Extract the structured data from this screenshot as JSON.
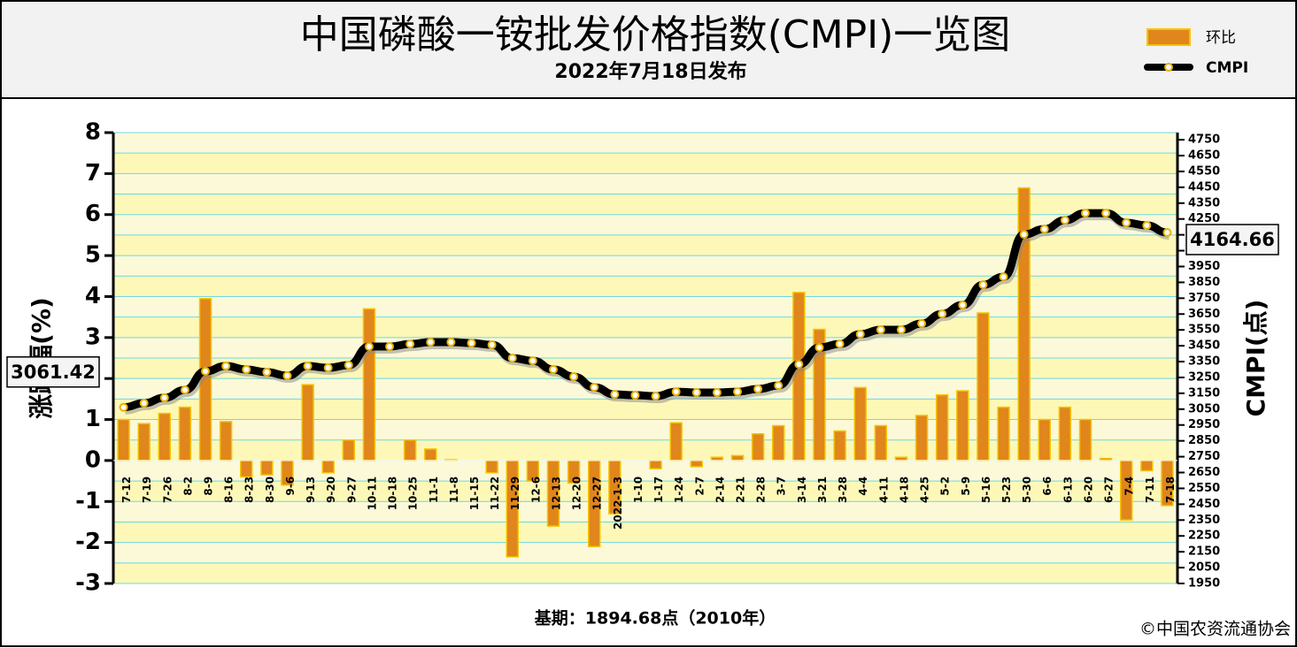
{
  "chart_data": {
    "type": "bar-line",
    "title": "中国磷酸一铵批发价格指数(CMPI)一览图",
    "subtitle": "2022年7月18日发布",
    "ylabel": "涨跌幅(%)",
    "y2label": "CMPI(点)",
    "footnote": "基期：1894.68点（2010年）",
    "source": "©中国农资流通协会",
    "categories": [
      "7-12",
      "7-19",
      "7-26",
      "8-2",
      "8-9",
      "8-16",
      "8-23",
      "8-30",
      "9-6",
      "9-13",
      "9-20",
      "9-27",
      "10-11",
      "10-18",
      "10-25",
      "11-1",
      "11-8",
      "11-15",
      "11-22",
      "11-29",
      "12-6",
      "12-13",
      "12-20",
      "12-27",
      "2022-1-3",
      "1-10",
      "1-17",
      "1-24",
      "2-7",
      "2-14",
      "2-21",
      "2-28",
      "3-7",
      "3-14",
      "3-21",
      "3-28",
      "4-4",
      "4-11",
      "4-18",
      "4-25",
      "5-2",
      "5-9",
      "5-16",
      "5-23",
      "5-30",
      "6-6",
      "6-13",
      "6-20",
      "6-27",
      "7-4",
      "7-11",
      "7-18"
    ],
    "series": [
      {
        "name": "环比",
        "color": "#e0861c",
        "values": [
          1.0,
          0.9,
          1.15,
          1.3,
          3.95,
          0.95,
          -0.4,
          -0.35,
          -0.6,
          1.85,
          -0.3,
          0.5,
          3.7,
          0,
          0.5,
          0.28,
          0.02,
          0,
          -0.3,
          -2.35,
          -0.5,
          -1.6,
          -0.55,
          -2.1,
          -1.3,
          0,
          -0.2,
          0.92,
          -0.15,
          0.08,
          0.12,
          0.65,
          0.85,
          4.1,
          3.2,
          0.72,
          1.78,
          0.85,
          0.08,
          1.1,
          1.6,
          1.7,
          3.6,
          1.3,
          6.65,
          1.0,
          1.3,
          1.0,
          0.05,
          -1.45,
          -0.25,
          -1.1
        ]
      },
      {
        "name": "CMPI",
        "color": "#000000",
        "axis": "y2",
        "values": [
          3061.42,
          3088,
          3122,
          3171,
          3289,
          3322,
          3300,
          3283,
          3261,
          3322,
          3311,
          3328,
          3445,
          3445,
          3461,
          3473,
          3473,
          3467,
          3456,
          3372,
          3355,
          3300,
          3255,
          3188,
          3143,
          3138,
          3132,
          3160,
          3155,
          3155,
          3160,
          3177,
          3199,
          3333,
          3439,
          3461,
          3523,
          3551,
          3551,
          3590,
          3651,
          3707,
          3835,
          3885,
          4153,
          4186,
          4242,
          4287,
          4287,
          4226,
          4209,
          4164.66
        ]
      }
    ],
    "ylim": [
      -3,
      8
    ],
    "yticks": [
      -3,
      -2,
      -1,
      0,
      1,
      2,
      3,
      4,
      5,
      6,
      7,
      8
    ],
    "y2lim": [
      1950,
      4795
    ],
    "y2ticks": [
      1950,
      2050,
      2150,
      2250,
      2350,
      2450,
      2550,
      2650,
      2750,
      2850,
      2950,
      3050,
      3150,
      3250,
      3350,
      3450,
      3550,
      3650,
      3750,
      3850,
      3950,
      4050,
      4150,
      4250,
      4350,
      4450,
      4550,
      4650,
      4750
    ],
    "grid": true
  }
}
